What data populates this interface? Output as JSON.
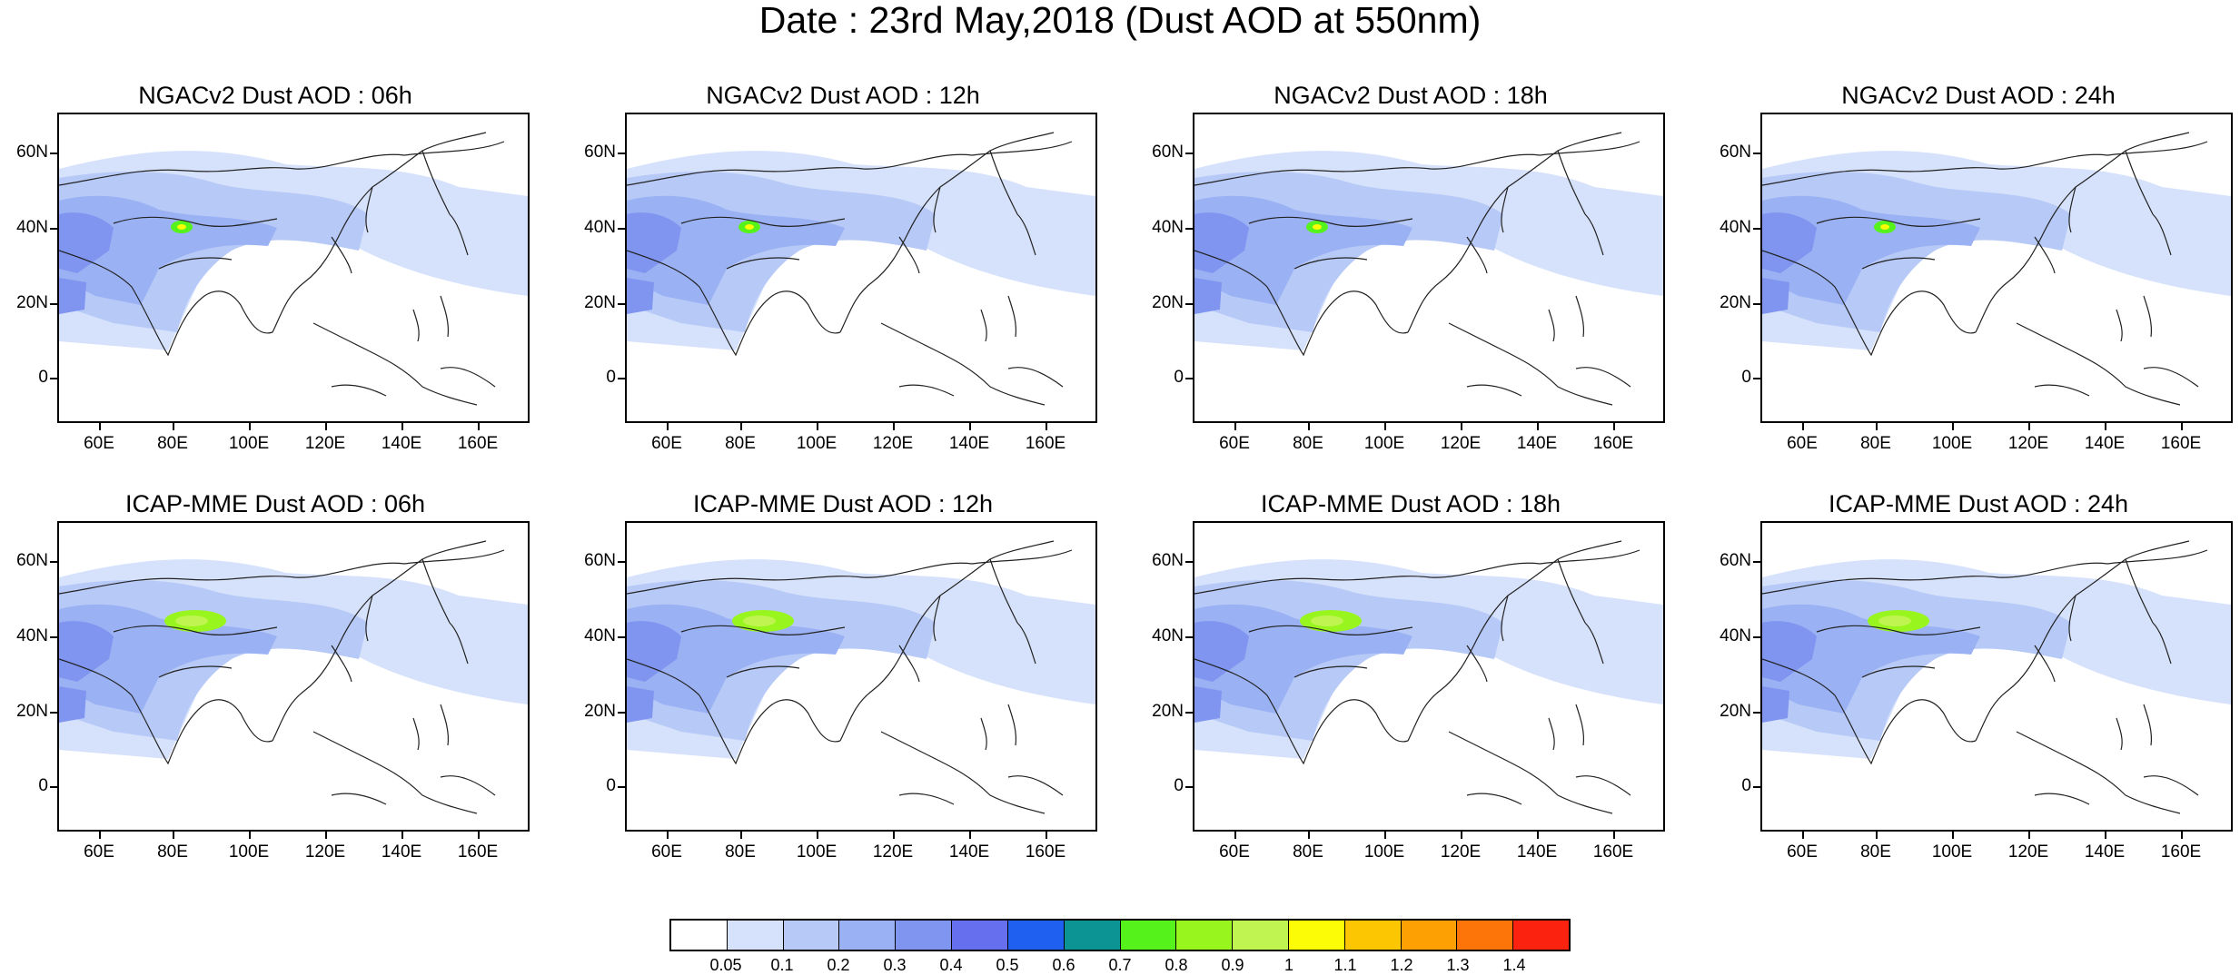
{
  "main_title": "Date : 23rd May,2018 (Dust AOD at 550nm)",
  "y_ticks": [
    "60N",
    "40N",
    "20N",
    "0"
  ],
  "x_ticks": [
    "60E",
    "80E",
    "100E",
    "120E",
    "140E",
    "160E"
  ],
  "panels": [
    {
      "title": "NGACv2 Dust AOD : 06h",
      "hotspot": "low"
    },
    {
      "title": "NGACv2 Dust AOD : 12h",
      "hotspot": "low"
    },
    {
      "title": "NGACv2 Dust AOD : 18h",
      "hotspot": "low"
    },
    {
      "title": "NGACv2 Dust AOD : 24h",
      "hotspot": "low"
    },
    {
      "title": "ICAP-MME Dust AOD : 06h",
      "hotspot": "high"
    },
    {
      "title": "ICAP-MME Dust AOD : 12h",
      "hotspot": "high"
    },
    {
      "title": "ICAP-MME Dust AOD : 18h",
      "hotspot": "high"
    },
    {
      "title": "ICAP-MME Dust AOD : 24h",
      "hotspot": "high"
    }
  ],
  "colorbar": {
    "labels": [
      "0.05",
      "0.1",
      "0.2",
      "0.3",
      "0.4",
      "0.5",
      "0.6",
      "0.7",
      "0.8",
      "0.9",
      "1",
      "1.1",
      "1.2",
      "1.3",
      "1.4"
    ],
    "colors": [
      "#ffffff",
      "#d6e2fb",
      "#b7c9f7",
      "#9ab1f4",
      "#7f95f0",
      "#6670ee",
      "#1f60f0",
      "#0c9494",
      "#55f21c",
      "#98f51d",
      "#c0f551",
      "#fcfc06",
      "#fcc603",
      "#fca004",
      "#fd7509",
      "#fb220f"
    ]
  }
}
